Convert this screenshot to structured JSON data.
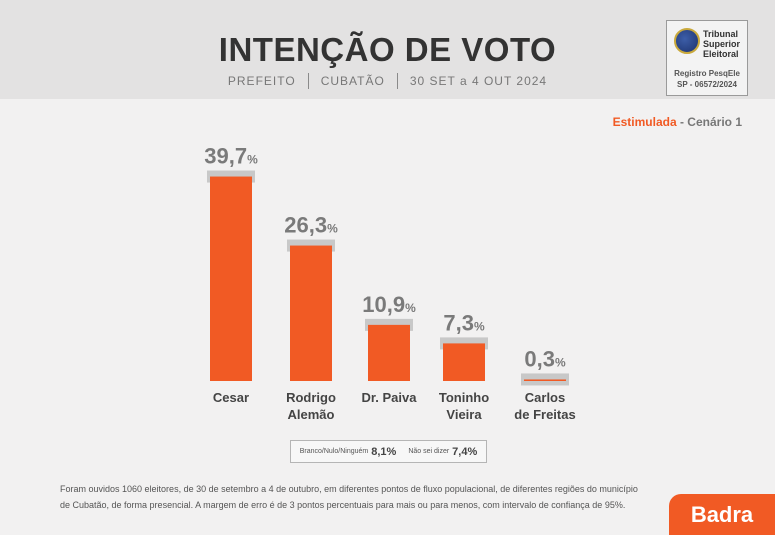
{
  "header": {
    "title": "INTENÇÃO DE VOTO",
    "office": "PREFEITO",
    "city": "CUBATÃO",
    "period": "30 SET a 4 OUT 2024"
  },
  "tse": {
    "name_line1": "Tribunal",
    "name_line2": "Superior",
    "name_line3": "Eleitoral",
    "registration_label": "Registro PesqEle",
    "registration_number": "SP - 06572/2024"
  },
  "scenario": {
    "type": "Estimulada",
    "label": " - Cenário 1"
  },
  "chart_data": {
    "type": "bar",
    "categories": [
      "Cesar",
      "Rodrigo Alemão",
      "Dr. Paiva",
      "Toninho Vieira",
      "Carlos de Freitas"
    ],
    "category_lines": [
      [
        "Cesar"
      ],
      [
        "Rodrigo",
        "Alemão"
      ],
      [
        "Dr. Paiva"
      ],
      [
        "Toninho",
        "Vieira"
      ],
      [
        "Carlos",
        "de Freitas"
      ]
    ],
    "values": [
      39.7,
      26.3,
      10.9,
      7.3,
      0.3
    ],
    "value_labels": [
      "39,7",
      "26,3",
      "10,9",
      "7,3",
      "0,3"
    ],
    "unit": "%",
    "ylim": [
      0,
      40
    ],
    "bar_color": "#f15a24",
    "cap_color": "#c8c8c8",
    "title": "INTENÇÃO DE VOTO"
  },
  "others": {
    "blank_label": "Branco/Nulo/Ninguém",
    "blank_value": "8,1%",
    "unknown_label": "Não sei dizer",
    "unknown_value": "7,4%"
  },
  "footnote": "Foram ouvidos 1060 eleitores, de 30 de setembro a 4 de outubro, em diferentes pontos de fluxo populacional, de diferentes regiões do município de Cubatão, de forma presencial. A margem de erro é de 3 pontos percentuais para mais ou para menos, com intervalo de confiança de 95%.",
  "brand": "Badra"
}
